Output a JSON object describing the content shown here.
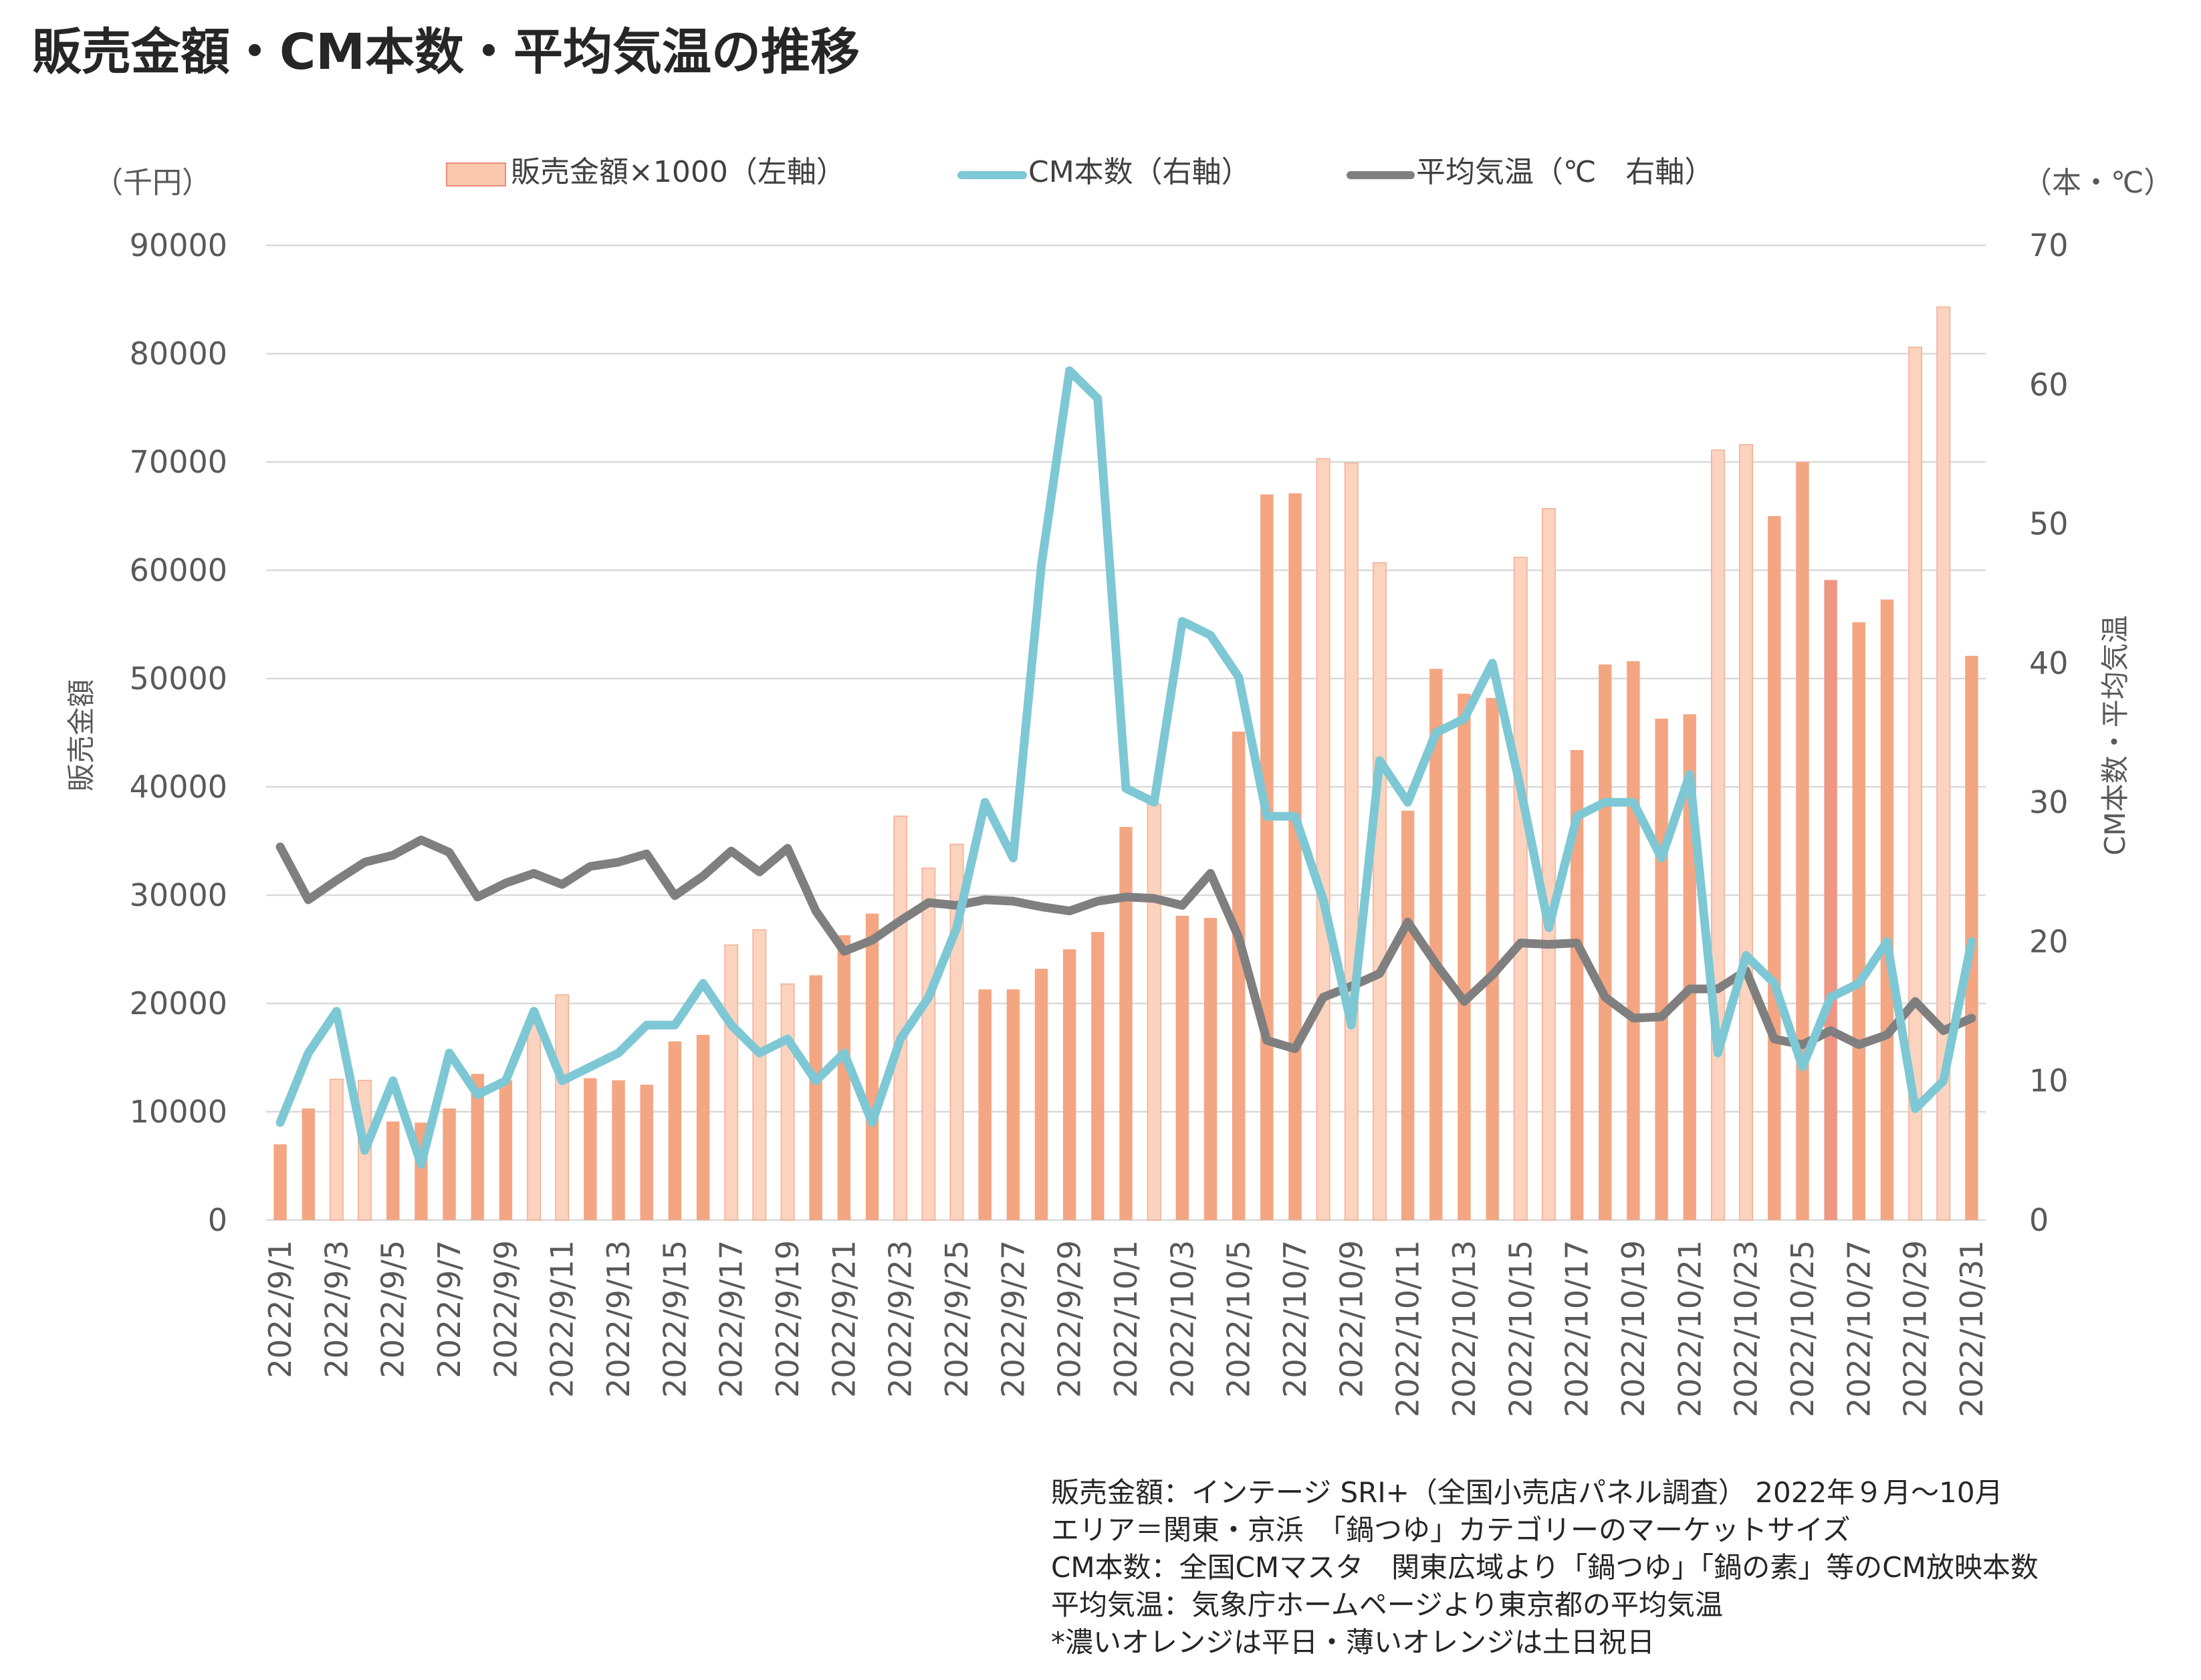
{
  "title": "販売金額・CM本数・平均気温の推移",
  "colors": {
    "weekday_bar": "#F4A582",
    "weekend_bar": "#FBD3BF",
    "bar_edge": "#F2AE93",
    "highlight_bar": "#EE9583",
    "cm_line": "#7DC8D4",
    "temp_line": "#7F7F7F",
    "grid": "#D9D9D9"
  },
  "chart_data": {
    "type": "bar",
    "title": "販売金額・CM本数・平均気温の推移",
    "left_unit": "（千円）",
    "right_unit": "（本・℃）",
    "ylabel": "販売金額",
    "y2label": "CM本数・平均気温",
    "ylim": [
      0,
      90000
    ],
    "y2lim": [
      0,
      70
    ],
    "yticks": [
      "90000",
      "80000",
      "70000",
      "60000",
      "50000",
      "40000",
      "30000",
      "20000",
      "10000",
      "0"
    ],
    "y2ticks": [
      "70",
      "60",
      "50",
      "40",
      "30",
      "20",
      "10",
      "0"
    ],
    "legend_position": "top",
    "legend": [
      {
        "label": "販売金額×1000（左軸）",
        "kind": "bar"
      },
      {
        "label": "CM本数（右軸）",
        "kind": "line",
        "color_key": "cm_line"
      },
      {
        "label": "平均気温（℃　右軸）",
        "kind": "line",
        "color_key": "temp_line"
      }
    ],
    "categories": [
      "2022/9/1",
      "2022/9/2",
      "2022/9/3",
      "2022/9/4",
      "2022/9/5",
      "2022/9/6",
      "2022/9/7",
      "2022/9/8",
      "2022/9/9",
      "2022/9/10",
      "2022/9/11",
      "2022/9/12",
      "2022/9/13",
      "2022/9/14",
      "2022/9/15",
      "2022/9/16",
      "2022/9/17",
      "2022/9/18",
      "2022/9/19",
      "2022/9/20",
      "2022/9/21",
      "2022/9/22",
      "2022/9/23",
      "2022/9/24",
      "2022/9/25",
      "2022/9/26",
      "2022/9/27",
      "2022/9/28",
      "2022/9/29",
      "2022/9/30",
      "2022/10/1",
      "2022/10/2",
      "2022/10/3",
      "2022/10/4",
      "2022/10/5",
      "2022/10/6",
      "2022/10/7",
      "2022/10/8",
      "2022/10/9",
      "2022/10/10",
      "2022/10/11",
      "2022/10/12",
      "2022/10/13",
      "2022/10/14",
      "2022/10/15",
      "2022/10/16",
      "2022/10/17",
      "2022/10/18",
      "2022/10/19",
      "2022/10/20",
      "2022/10/21",
      "2022/10/22",
      "2022/10/23",
      "2022/10/24",
      "2022/10/25",
      "2022/10/26",
      "2022/10/27",
      "2022/10/28",
      "2022/10/29",
      "2022/10/30",
      "2022/10/31"
    ],
    "xtick_labels": [
      "2022/9/1",
      "",
      "2022/9/3",
      "",
      "2022/9/5",
      "",
      "2022/9/7",
      "",
      "2022/9/9",
      "",
      "2022/9/11",
      "",
      "2022/9/13",
      "",
      "2022/9/15",
      "",
      "2022/9/17",
      "",
      "2022/9/19",
      "",
      "2022/9/21",
      "",
      "2022/9/23",
      "",
      "2022/9/25",
      "",
      "2022/9/27",
      "",
      "2022/9/29",
      "",
      "2022/10/1",
      "",
      "2022/10/3",
      "",
      "2022/10/5",
      "",
      "2022/10/7",
      "",
      "2022/10/9",
      "",
      "2022/10/11",
      "",
      "2022/10/13",
      "",
      "2022/10/15",
      "",
      "2022/10/17",
      "",
      "2022/10/19",
      "",
      "2022/10/21",
      "",
      "2022/10/23",
      "",
      "2022/10/25",
      "",
      "2022/10/27",
      "",
      "2022/10/29",
      "",
      "2022/10/31"
    ],
    "series": [
      {
        "name": "販売金額×1000（左軸）",
        "axis": "left",
        "type": "bar",
        "values": [
          7000,
          10300,
          13000,
          12900,
          9100,
          9000,
          10300,
          13500,
          12900,
          18100,
          20800,
          13100,
          12900,
          12500,
          16500,
          17100,
          25400,
          26800,
          21800,
          22600,
          26300,
          28300,
          37300,
          32500,
          34700,
          21300,
          21300,
          23200,
          25000,
          26600,
          36300,
          38400,
          28100,
          27900,
          45100,
          67000,
          67100,
          70300,
          69900,
          60700,
          37800,
          50900,
          48600,
          48200,
          61200,
          65700,
          43400,
          51300,
          51600,
          46300,
          46700,
          71100,
          71600,
          65000,
          70000,
          59100,
          55200,
          57300,
          80600,
          84300,
          52100
        ]
      },
      {
        "name": "CM本数（右軸）",
        "axis": "right",
        "type": "line",
        "values": [
          7,
          12,
          15,
          5,
          10,
          4,
          12,
          9,
          10,
          15,
          10,
          11,
          12,
          14,
          14,
          17,
          14,
          12,
          13,
          10,
          12,
          7,
          13,
          16,
          21,
          30,
          26,
          47,
          61,
          59,
          31,
          30,
          43,
          42,
          39,
          29,
          29,
          23,
          14,
          33,
          30,
          35,
          36,
          40,
          31,
          21,
          29,
          30,
          30,
          26,
          32,
          12,
          19,
          17,
          11,
          16,
          17,
          20,
          8,
          10,
          20
        ]
      },
      {
        "name": "平均気温（℃　右軸）",
        "axis": "right",
        "type": "line",
        "values": [
          26.8,
          23.0,
          24.4,
          25.7,
          26.2,
          27.3,
          26.4,
          23.2,
          24.2,
          24.9,
          24.1,
          25.4,
          25.7,
          26.3,
          23.3,
          24.7,
          26.5,
          25.0,
          26.7,
          22.2,
          19.3,
          20.1,
          21.5,
          22.8,
          22.6,
          23.0,
          22.9,
          22.5,
          22.2,
          22.9,
          23.2,
          23.1,
          22.6,
          24.9,
          20.3,
          12.9,
          12.3,
          16.0,
          16.8,
          17.7,
          21.4,
          18.4,
          15.7,
          17.6,
          19.9,
          19.8,
          19.9,
          16.0,
          14.5,
          14.6,
          16.6,
          16.6,
          17.9,
          13.0,
          12.6,
          13.6,
          12.6,
          13.3,
          15.7,
          13.6,
          14.5
        ]
      }
    ],
    "day_type": [
      "W",
      "W",
      "H",
      "H",
      "W",
      "W",
      "W",
      "W",
      "W",
      "H",
      "H",
      "W",
      "W",
      "W",
      "W",
      "W",
      "H",
      "H",
      "H",
      "W",
      "W",
      "W",
      "H",
      "H",
      "H",
      "W",
      "W",
      "W",
      "W",
      "W",
      "W",
      "H",
      "W",
      "W",
      "W",
      "W",
      "W",
      "H",
      "H",
      "H",
      "W",
      "W",
      "W",
      "W",
      "H",
      "H",
      "W",
      "W",
      "W",
      "W",
      "W",
      "H",
      "H",
      "W",
      "W",
      "W",
      "W",
      "W",
      "H",
      "H",
      "W"
    ]
  },
  "notes": [
    "販売金額：インテージ SRI+（全国小売店パネル調査） 2022年９月～10月",
    "エリア＝関東・京浜　「鍋つゆ」カテゴリーのマーケットサイズ",
    "CM本数：全国CMマスタ　関東広域より「鍋つゆ」「鍋の素」等のCM放映本数",
    "平均気温：気象庁ホームページより東京都の平均気温",
    "*濃いオレンジは平日・薄いオレンジは土日祝日"
  ]
}
